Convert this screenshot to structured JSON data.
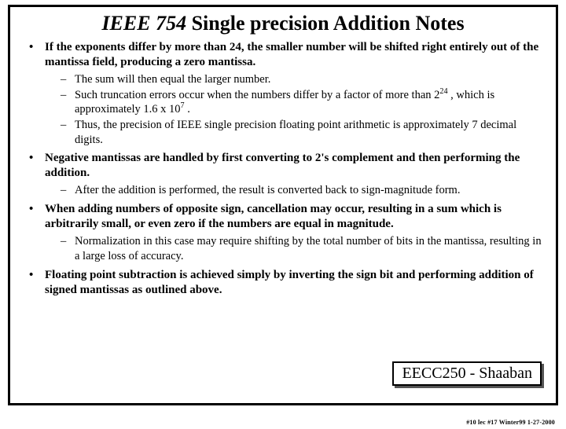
{
  "title": {
    "italic_part": "IEEE 754",
    "rest": " Single precision Addition Notes"
  },
  "bullets": [
    {
      "text": "If the exponents differ by more than 24, the smaller number will be shifted right entirely out of the mantissa field, producing a zero mantissa.",
      "subs": [
        "The sum will then equal the larger number.",
        "Such truncation errors occur when the numbers differ by a factor of more than 2^24 , which is approximately 1.6 x 10^7 .",
        "Thus, the precision of IEEE single precision floating point arithmetic is approximately 7 decimal digits."
      ]
    },
    {
      "text": "Negative mantissas are handled by first converting to 2's complement and then performing the addition.",
      "subs": [
        "After the addition is performed, the result is converted back to sign-magnitude form."
      ]
    },
    {
      "text": "When adding numbers of opposite sign, cancellation may occur, resulting in a sum which is arbitrarily small, or even zero if the numbers are equal in magnitude.",
      "subs": [
        "Normalization in this case may require shifting by the total number of bits in the mantissa, resulting in a large loss of accuracy."
      ]
    },
    {
      "text": "Floating point subtraction is achieved simply by inverting the sign bit and performing addition of signed mantissas as outlined above.",
      "subs": []
    }
  ],
  "footer_box": "EECC250 - Shaaban",
  "small_footer": "#10  lec #17  Winter99   1-27-2000"
}
